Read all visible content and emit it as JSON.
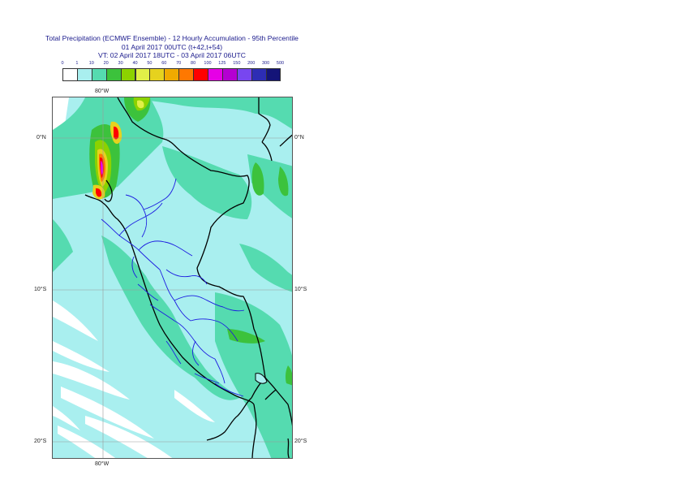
{
  "title": {
    "line1": "Total Precipitation (ECMWF Ensemble) - 12 Hourly Accumulation - 95th Percentile",
    "line2": "01 April 2017 00UTC (t+42,t+54)",
    "line3": "VT: 02 April 2017 18UTC - 03 April 2017 06UTC"
  },
  "legend": {
    "ticks": [
      "0",
      "1",
      "10",
      "20",
      "30",
      "40",
      "50",
      "60",
      "70",
      "80",
      "100",
      "125",
      "150",
      "200",
      "300",
      "500"
    ],
    "colors": [
      "#ffffff",
      "#a9efef",
      "#55dbb0",
      "#3cc23c",
      "#8cd200",
      "#e1f048",
      "#e6d21e",
      "#f0aa00",
      "#ff7800",
      "#ff0000",
      "#e600e6",
      "#b400d2",
      "#7846f0",
      "#2d2db4",
      "#141478"
    ]
  },
  "axes": {
    "top_lon": "80°W",
    "bottom_lon": "80°W",
    "left_lat": [
      "0°N",
      "10°S",
      "20°S"
    ],
    "right_lat": [
      "0°N",
      "10°S",
      "20°S"
    ]
  }
}
